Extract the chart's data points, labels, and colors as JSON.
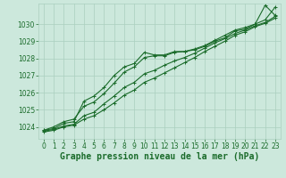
{
  "title": "Graphe pression niveau de la mer (hPa)",
  "background_color": "#cce8dc",
  "grid_color": "#aacfbf",
  "line_color": "#1a6b2a",
  "x_labels": [
    "0",
    "1",
    "2",
    "3",
    "4",
    "5",
    "6",
    "7",
    "8",
    "9",
    "10",
    "11",
    "12",
    "13",
    "14",
    "15",
    "16",
    "17",
    "18",
    "19",
    "20",
    "21",
    "22",
    "23"
  ],
  "ylim": [
    1023.3,
    1031.2
  ],
  "yticks": [
    1024,
    1025,
    1026,
    1027,
    1028,
    1029,
    1030
  ],
  "series": [
    [
      1023.8,
      1023.9,
      1024.2,
      1024.3,
      1025.5,
      1025.8,
      1026.3,
      1027.0,
      1027.5,
      1027.7,
      1028.35,
      1028.2,
      1028.2,
      1028.4,
      1028.4,
      1028.5,
      1028.7,
      1029.0,
      1029.2,
      1029.6,
      1029.7,
      1030.0,
      1031.1,
      1030.5
    ],
    [
      1023.8,
      1024.0,
      1024.3,
      1024.45,
      1025.2,
      1025.45,
      1025.95,
      1026.55,
      1027.2,
      1027.5,
      1028.05,
      1028.15,
      1028.15,
      1028.35,
      1028.4,
      1028.55,
      1028.75,
      1029.05,
      1029.35,
      1029.65,
      1029.8,
      1030.0,
      1030.25,
      1031.0
    ],
    [
      1023.75,
      1023.85,
      1024.05,
      1024.15,
      1024.65,
      1024.85,
      1025.35,
      1025.8,
      1026.3,
      1026.6,
      1027.1,
      1027.3,
      1027.6,
      1027.85,
      1028.05,
      1028.3,
      1028.6,
      1028.9,
      1029.15,
      1029.45,
      1029.65,
      1029.9,
      1030.1,
      1030.45
    ],
    [
      1023.7,
      1023.8,
      1024.0,
      1024.1,
      1024.45,
      1024.65,
      1025.0,
      1025.4,
      1025.85,
      1026.15,
      1026.6,
      1026.85,
      1027.15,
      1027.45,
      1027.75,
      1028.05,
      1028.4,
      1028.7,
      1029.0,
      1029.35,
      1029.55,
      1029.85,
      1030.05,
      1030.35
    ]
  ],
  "marker": "+",
  "marker_size": 3.5,
  "linewidth": 0.8,
  "title_fontsize": 7,
  "tick_fontsize": 5.5,
  "title_color": "#1a6b2a",
  "tick_color": "#1a6b2a"
}
